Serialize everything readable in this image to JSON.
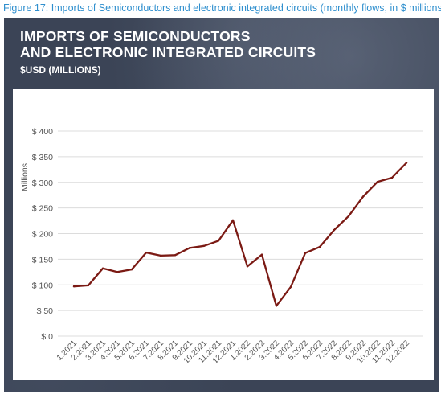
{
  "caption": "Figure 17: Imports of Semiconductors and electronic integrated circuits (monthly flows, in $ millions)",
  "header": {
    "title_line1": "IMPORTS OF SEMICONDUCTORS",
    "title_line2": "AND ELECTRONIC INTEGRATED CIRCUITS",
    "subtitle": "$USD (MILLIONS)"
  },
  "colors": {
    "caption": "#2f8fce",
    "panel": "#3b4456",
    "line": "#7b1a14",
    "grid": "#dcdcdc",
    "tick_text": "#555555"
  },
  "chart_data": {
    "type": "line",
    "ylabel": "Millions",
    "ylim": [
      0,
      400
    ],
    "y_ticks": [
      0,
      50,
      100,
      150,
      200,
      250,
      300,
      350,
      400
    ],
    "y_tick_labels": [
      "$ 0",
      "$ 50",
      "$ 100",
      "$ 150",
      "$ 200",
      "$ 250",
      "$ 300",
      "$ 350",
      "$ 400"
    ],
    "grid": true,
    "legend": "none",
    "categories": [
      "1.2021",
      "2.2021",
      "3.2021",
      "4.2021",
      "5.2021",
      "6.2021",
      "7.2021",
      "8.2021",
      "9.2021",
      "10.2021",
      "11.2021",
      "12.2021",
      "1.2022",
      "2.2022",
      "3.2022",
      "4.2022",
      "5.2022",
      "6.2022",
      "7.2022",
      "8.2022",
      "9.2022",
      "10.2022",
      "11.2022",
      "12.2022"
    ],
    "series": [
      {
        "values": [
          97,
          99,
          132,
          125,
          130,
          163,
          157,
          158,
          172,
          176,
          186,
          226,
          136,
          159,
          59,
          96,
          162,
          174,
          207,
          234,
          272,
          301,
          309,
          338
        ]
      }
    ]
  }
}
